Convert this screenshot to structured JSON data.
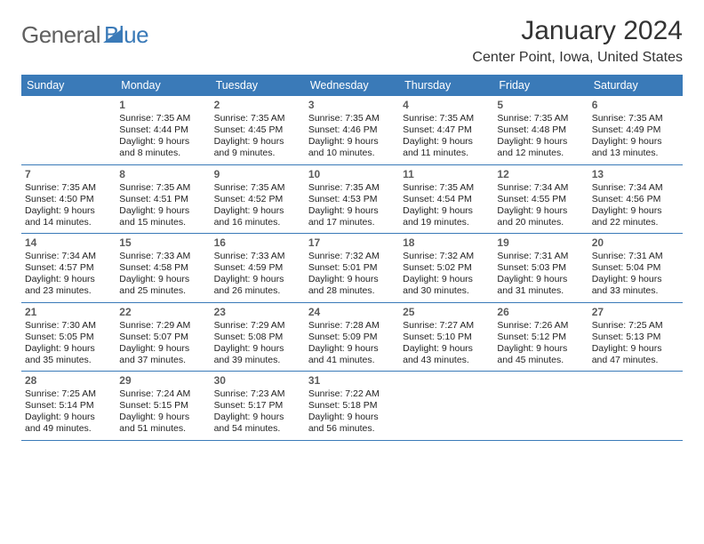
{
  "logo": {
    "word1": "General",
    "word2": "Blue"
  },
  "colors": {
    "brand_blue": "#3a7ab8",
    "logo_gray": "#606060",
    "text": "#232323",
    "daynum": "#5c5c5c",
    "row_border": "#3a7ab8",
    "background": "#ffffff"
  },
  "title": "January 2024",
  "location": "Center Point, Iowa, United States",
  "weekdays": [
    "Sunday",
    "Monday",
    "Tuesday",
    "Wednesday",
    "Thursday",
    "Friday",
    "Saturday"
  ],
  "layout": {
    "columns": 7,
    "first_day_column_index": 1,
    "row_count": 5,
    "header_fontsize": 12.5,
    "cell_fontsize": 10.5,
    "title_fontsize": 30,
    "location_fontsize": 16
  },
  "days": [
    {
      "n": "1",
      "sunrise": "7:35 AM",
      "sunset": "4:44 PM",
      "daylight": "Daylight: 9 hours and 8 minutes."
    },
    {
      "n": "2",
      "sunrise": "7:35 AM",
      "sunset": "4:45 PM",
      "daylight": "Daylight: 9 hours and 9 minutes."
    },
    {
      "n": "3",
      "sunrise": "7:35 AM",
      "sunset": "4:46 PM",
      "daylight": "Daylight: 9 hours and 10 minutes."
    },
    {
      "n": "4",
      "sunrise": "7:35 AM",
      "sunset": "4:47 PM",
      "daylight": "Daylight: 9 hours and 11 minutes."
    },
    {
      "n": "5",
      "sunrise": "7:35 AM",
      "sunset": "4:48 PM",
      "daylight": "Daylight: 9 hours and 12 minutes."
    },
    {
      "n": "6",
      "sunrise": "7:35 AM",
      "sunset": "4:49 PM",
      "daylight": "Daylight: 9 hours and 13 minutes."
    },
    {
      "n": "7",
      "sunrise": "7:35 AM",
      "sunset": "4:50 PM",
      "daylight": "Daylight: 9 hours and 14 minutes."
    },
    {
      "n": "8",
      "sunrise": "7:35 AM",
      "sunset": "4:51 PM",
      "daylight": "Daylight: 9 hours and 15 minutes."
    },
    {
      "n": "9",
      "sunrise": "7:35 AM",
      "sunset": "4:52 PM",
      "daylight": "Daylight: 9 hours and 16 minutes."
    },
    {
      "n": "10",
      "sunrise": "7:35 AM",
      "sunset": "4:53 PM",
      "daylight": "Daylight: 9 hours and 17 minutes."
    },
    {
      "n": "11",
      "sunrise": "7:35 AM",
      "sunset": "4:54 PM",
      "daylight": "Daylight: 9 hours and 19 minutes."
    },
    {
      "n": "12",
      "sunrise": "7:34 AM",
      "sunset": "4:55 PM",
      "daylight": "Daylight: 9 hours and 20 minutes."
    },
    {
      "n": "13",
      "sunrise": "7:34 AM",
      "sunset": "4:56 PM",
      "daylight": "Daylight: 9 hours and 22 minutes."
    },
    {
      "n": "14",
      "sunrise": "7:34 AM",
      "sunset": "4:57 PM",
      "daylight": "Daylight: 9 hours and 23 minutes."
    },
    {
      "n": "15",
      "sunrise": "7:33 AM",
      "sunset": "4:58 PM",
      "daylight": "Daylight: 9 hours and 25 minutes."
    },
    {
      "n": "16",
      "sunrise": "7:33 AM",
      "sunset": "4:59 PM",
      "daylight": "Daylight: 9 hours and 26 minutes."
    },
    {
      "n": "17",
      "sunrise": "7:32 AM",
      "sunset": "5:01 PM",
      "daylight": "Daylight: 9 hours and 28 minutes."
    },
    {
      "n": "18",
      "sunrise": "7:32 AM",
      "sunset": "5:02 PM",
      "daylight": "Daylight: 9 hours and 30 minutes."
    },
    {
      "n": "19",
      "sunrise": "7:31 AM",
      "sunset": "5:03 PM",
      "daylight": "Daylight: 9 hours and 31 minutes."
    },
    {
      "n": "20",
      "sunrise": "7:31 AM",
      "sunset": "5:04 PM",
      "daylight": "Daylight: 9 hours and 33 minutes."
    },
    {
      "n": "21",
      "sunrise": "7:30 AM",
      "sunset": "5:05 PM",
      "daylight": "Daylight: 9 hours and 35 minutes."
    },
    {
      "n": "22",
      "sunrise": "7:29 AM",
      "sunset": "5:07 PM",
      "daylight": "Daylight: 9 hours and 37 minutes."
    },
    {
      "n": "23",
      "sunrise": "7:29 AM",
      "sunset": "5:08 PM",
      "daylight": "Daylight: 9 hours and 39 minutes."
    },
    {
      "n": "24",
      "sunrise": "7:28 AM",
      "sunset": "5:09 PM",
      "daylight": "Daylight: 9 hours and 41 minutes."
    },
    {
      "n": "25",
      "sunrise": "7:27 AM",
      "sunset": "5:10 PM",
      "daylight": "Daylight: 9 hours and 43 minutes."
    },
    {
      "n": "26",
      "sunrise": "7:26 AM",
      "sunset": "5:12 PM",
      "daylight": "Daylight: 9 hours and 45 minutes."
    },
    {
      "n": "27",
      "sunrise": "7:25 AM",
      "sunset": "5:13 PM",
      "daylight": "Daylight: 9 hours and 47 minutes."
    },
    {
      "n": "28",
      "sunrise": "7:25 AM",
      "sunset": "5:14 PM",
      "daylight": "Daylight: 9 hours and 49 minutes."
    },
    {
      "n": "29",
      "sunrise": "7:24 AM",
      "sunset": "5:15 PM",
      "daylight": "Daylight: 9 hours and 51 minutes."
    },
    {
      "n": "30",
      "sunrise": "7:23 AM",
      "sunset": "5:17 PM",
      "daylight": "Daylight: 9 hours and 54 minutes."
    },
    {
      "n": "31",
      "sunrise": "7:22 AM",
      "sunset": "5:18 PM",
      "daylight": "Daylight: 9 hours and 56 minutes."
    }
  ]
}
